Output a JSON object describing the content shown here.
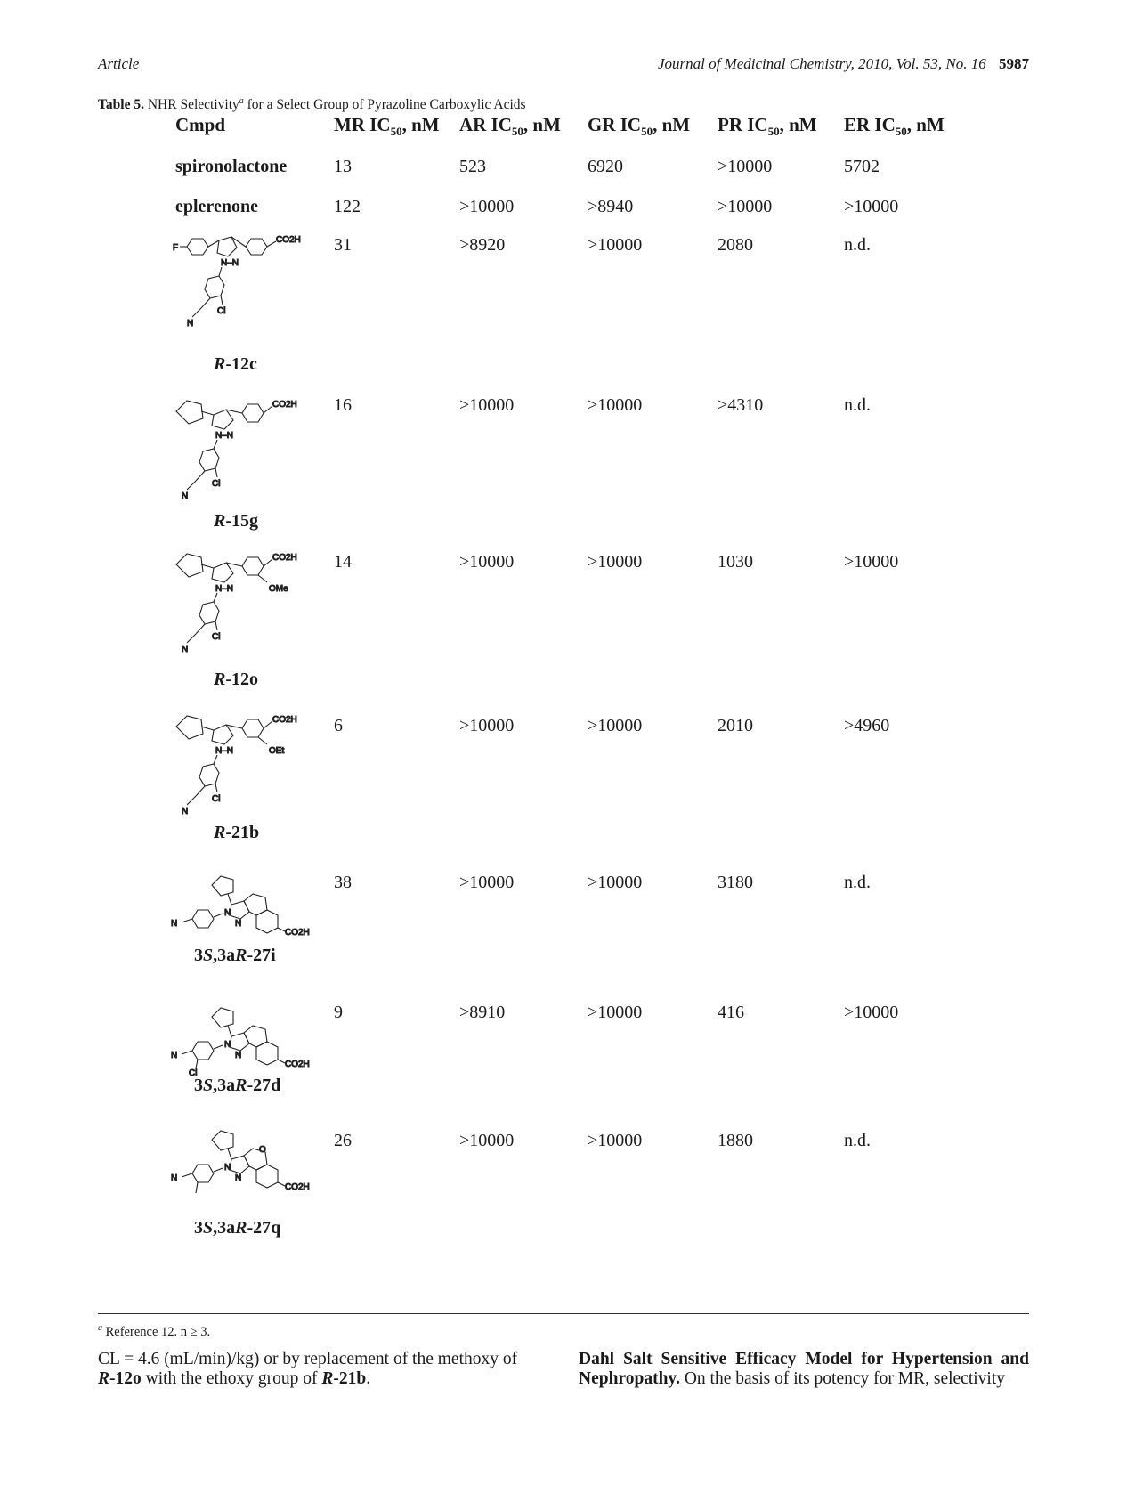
{
  "header": {
    "left": "Article",
    "journal": "Journal of Medicinal Chemistry, 2010, Vol. 53, No. 16",
    "page": "5987"
  },
  "table": {
    "label": "Table 5.",
    "title_pre": "NHR Selectivity",
    "title_sup": "a",
    "title_post": " for a Select Group of Pyrazoline Carboxylic Acids",
    "columns": [
      "Cmpd",
      "MR IC50, nM",
      "AR IC50, nM",
      "GR IC50, nM",
      "PR IC50, nM",
      "ER IC50, nM"
    ],
    "rows": [
      {
        "cmpd": "spironolactone",
        "mr": "13",
        "ar": "523",
        "gr": "6920",
        "pr": ">10000",
        "er": "5702"
      },
      {
        "cmpd": "eplerenone",
        "mr": "122",
        "ar": ">10000",
        "gr": ">8940",
        "pr": ">10000",
        "er": ">10000"
      },
      {
        "cmpd": "R-12c",
        "mr": "31",
        "ar": ">8920",
        "gr": ">10000",
        "pr": "2080",
        "er": "n.d."
      },
      {
        "cmpd": "R-15g",
        "mr": "16",
        "ar": ">10000",
        "gr": ">10000",
        "pr": ">4310",
        "er": "n.d."
      },
      {
        "cmpd": "R-12o",
        "mr": "14",
        "ar": ">10000",
        "gr": ">10000",
        "pr": "1030",
        "er": ">10000"
      },
      {
        "cmpd": "R-21b",
        "mr": "6",
        "ar": ">10000",
        "gr": ">10000",
        "pr": "2010",
        "er": ">4960"
      },
      {
        "cmpd": "3S,3aR-27i",
        "mr": "38",
        "ar": ">10000",
        "gr": ">10000",
        "pr": "3180",
        "er": "n.d."
      },
      {
        "cmpd": "3S,3aR-27d",
        "mr": "9",
        "ar": ">8910",
        "gr": ">10000",
        "pr": "416",
        "er": ">10000"
      },
      {
        "cmpd": "3S,3aR-27q",
        "mr": "26",
        "ar": ">10000",
        "gr": ">10000",
        "pr": "1880",
        "er": "n.d."
      }
    ],
    "structure_labels": {
      "co2h": "CO2H",
      "f": "F",
      "cl": "Cl",
      "n": "N",
      "nn": "N–N",
      "ome": "OMe",
      "oet": "OEt",
      "o": "O"
    },
    "footnote": "Reference 12. n ≥ 3.",
    "footnote_mark": "a"
  },
  "body": {
    "left_line1": "CL = 4.6 (mL/min)/kg) or by replacement of the methoxy of",
    "left_line2_pre": "R",
    "left_line2_mid": "-12o with the ethoxy group of ",
    "left_line2_r": "R",
    "left_line2_end": "-21b.",
    "right_bold": "Dahl Salt Sensitive Efficacy Model for Hypertension and Nephropathy.",
    "right_text": " On the basis of its potency for MR, selectivity"
  }
}
